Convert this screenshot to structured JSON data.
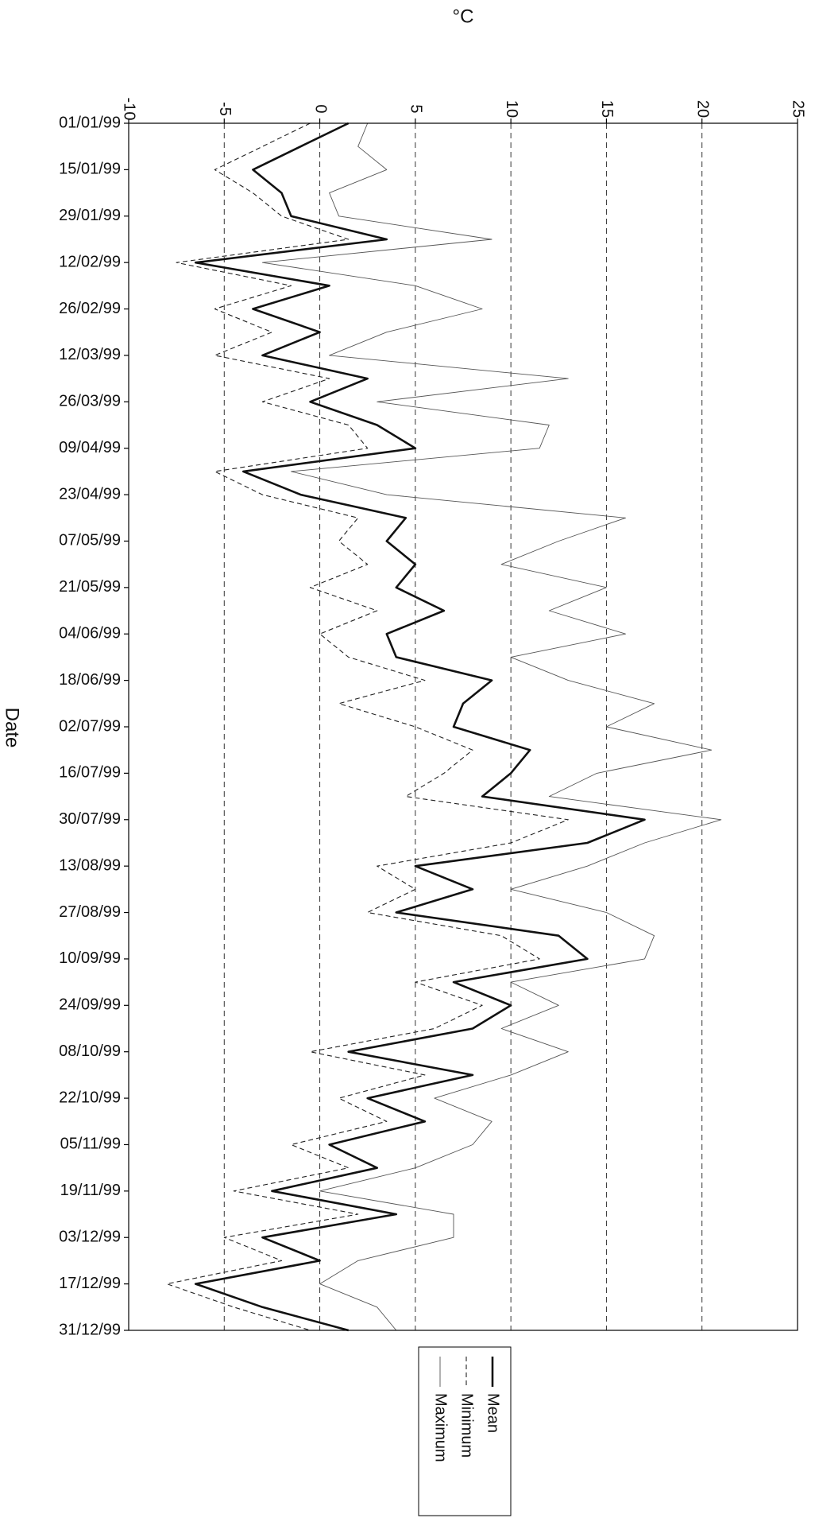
{
  "chart_data": {
    "type": "line",
    "orientation": "rotated-90-clockwise",
    "xlabel": "Date",
    "ylabel": "°C",
    "ylim": [
      -10,
      25
    ],
    "y_ticks": [
      "-10",
      "-5",
      "0",
      "5",
      "10",
      "15",
      "20",
      "25"
    ],
    "x_range": [
      "01/01/99",
      "31/12/99"
    ],
    "x_tick_labels": [
      "01/01/99",
      "15/01/99",
      "29/01/99",
      "12/02/99",
      "26/02/99",
      "12/03/99",
      "26/03/99",
      "09/04/99",
      "23/04/99",
      "07/05/99",
      "21/05/99",
      "04/06/99",
      "18/06/99",
      "02/07/99",
      "16/07/99",
      "30/07/99",
      "13/08/99",
      "27/08/99",
      "10/09/99",
      "24/09/99",
      "08/10/99",
      "22/10/99",
      "05/11/99",
      "19/11/99",
      "03/12/99",
      "17/12/99",
      "31/12/99"
    ],
    "grid": "dashed vertical gridlines at each °C tick",
    "legend_position": "bottom",
    "series": [
      {
        "name": "Mean",
        "style": "thick solid",
        "color": "#111111",
        "x": [
          "01/01/99",
          "08/01/99",
          "15/01/99",
          "22/01/99",
          "29/01/99",
          "05/02/99",
          "12/02/99",
          "19/02/99",
          "26/02/99",
          "05/03/99",
          "12/03/99",
          "19/03/99",
          "26/03/99",
          "02/04/99",
          "09/04/99",
          "16/04/99",
          "23/04/99",
          "30/04/99",
          "07/05/99",
          "14/05/99",
          "21/05/99",
          "28/05/99",
          "04/06/99",
          "11/06/99",
          "18/06/99",
          "25/06/99",
          "02/07/99",
          "09/07/99",
          "16/07/99",
          "23/07/99",
          "30/07/99",
          "06/08/99",
          "13/08/99",
          "20/08/99",
          "27/08/99",
          "03/09/99",
          "10/09/99",
          "17/09/99",
          "24/09/99",
          "01/10/99",
          "08/10/99",
          "15/10/99",
          "22/10/99",
          "29/10/99",
          "05/11/99",
          "12/11/99",
          "19/11/99",
          "26/11/99",
          "03/12/99",
          "10/12/99",
          "17/12/99",
          "24/12/99",
          "31/12/99"
        ],
        "values": [
          1.5,
          -1.0,
          -3.5,
          -2.0,
          -1.5,
          3.5,
          -6.5,
          0.5,
          -3.5,
          0.0,
          -3.0,
          2.5,
          -0.5,
          3.0,
          5.0,
          -4.0,
          -1.0,
          4.5,
          3.5,
          5.0,
          4.0,
          6.5,
          3.5,
          4.0,
          9.0,
          7.5,
          7.0,
          11.0,
          10.0,
          8.5,
          17.0,
          14.0,
          5.0,
          8.0,
          4.0,
          12.5,
          14.0,
          7.0,
          10.0,
          8.0,
          1.5,
          8.0,
          2.5,
          5.5,
          0.5,
          3.0,
          -2.5,
          4.0,
          -3.0,
          0.0,
          -6.5,
          -3.0,
          1.5
        ]
      },
      {
        "name": "Minimum",
        "style": "dashed",
        "color": "#222222",
        "x": [
          "01/01/99",
          "08/01/99",
          "15/01/99",
          "22/01/99",
          "29/01/99",
          "05/02/99",
          "12/02/99",
          "19/02/99",
          "26/02/99",
          "05/03/99",
          "12/03/99",
          "19/03/99",
          "26/03/99",
          "02/04/99",
          "09/04/99",
          "16/04/99",
          "23/04/99",
          "30/04/99",
          "07/05/99",
          "14/05/99",
          "21/05/99",
          "28/05/99",
          "04/06/99",
          "11/06/99",
          "18/06/99",
          "25/06/99",
          "02/07/99",
          "09/07/99",
          "16/07/99",
          "23/07/99",
          "30/07/99",
          "06/08/99",
          "13/08/99",
          "20/08/99",
          "27/08/99",
          "03/09/99",
          "10/09/99",
          "17/09/99",
          "24/09/99",
          "01/10/99",
          "08/10/99",
          "15/10/99",
          "22/10/99",
          "29/10/99",
          "05/11/99",
          "12/11/99",
          "19/11/99",
          "26/11/99",
          "03/12/99",
          "10/12/99",
          "17/12/99",
          "24/12/99",
          "31/12/99"
        ],
        "values": [
          -0.5,
          -3.0,
          -5.5,
          -3.5,
          -2.0,
          1.5,
          -7.5,
          -1.5,
          -5.5,
          -2.5,
          -5.5,
          0.5,
          -3.0,
          1.5,
          2.5,
          -5.5,
          -3.0,
          2.0,
          1.0,
          2.5,
          -0.5,
          3.0,
          0.0,
          1.5,
          5.5,
          1.0,
          5.0,
          8.0,
          6.5,
          4.5,
          13.0,
          10.0,
          3.0,
          5.0,
          2.5,
          9.5,
          11.5,
          5.0,
          8.5,
          6.0,
          -0.5,
          5.5,
          1.0,
          3.5,
          -1.5,
          1.5,
          -4.5,
          2.0,
          -5.0,
          -2.0,
          -8.0,
          -4.5,
          -0.5
        ]
      },
      {
        "name": "Maximum",
        "style": "thin solid",
        "color": "#555555",
        "x": [
          "01/01/99",
          "08/01/99",
          "15/01/99",
          "22/01/99",
          "29/01/99",
          "05/02/99",
          "12/02/99",
          "19/02/99",
          "26/02/99",
          "05/03/99",
          "12/03/99",
          "19/03/99",
          "26/03/99",
          "02/04/99",
          "09/04/99",
          "16/04/99",
          "23/04/99",
          "30/04/99",
          "07/05/99",
          "14/05/99",
          "21/05/99",
          "28/05/99",
          "04/06/99",
          "11/06/99",
          "18/06/99",
          "25/06/99",
          "02/07/99",
          "09/07/99",
          "16/07/99",
          "23/07/99",
          "30/07/99",
          "06/08/99",
          "13/08/99",
          "20/08/99",
          "27/08/99",
          "03/09/99",
          "10/09/99",
          "17/09/99",
          "24/09/99",
          "01/10/99",
          "08/10/99",
          "15/10/99",
          "22/10/99",
          "29/10/99",
          "05/11/99",
          "12/11/99",
          "19/11/99",
          "26/11/99",
          "03/12/99",
          "10/12/99",
          "17/12/99",
          "24/12/99",
          "31/12/99"
        ],
        "values": [
          2.5,
          2.0,
          3.5,
          0.5,
          1.0,
          9.0,
          -3.0,
          5.0,
          8.5,
          3.5,
          0.5,
          13.0,
          3.0,
          12.0,
          11.5,
          -1.5,
          3.5,
          16.0,
          12.5,
          9.5,
          15.0,
          12.0,
          16.0,
          10.0,
          13.0,
          17.5,
          15.0,
          20.5,
          14.5,
          12.0,
          21.0,
          17.0,
          14.0,
          10.0,
          15.0,
          17.5,
          17.0,
          10.0,
          12.5,
          9.5,
          13.0,
          10.0,
          6.0,
          9.0,
          8.0,
          5.0,
          0.0,
          7.0,
          7.0,
          2.0,
          0.0,
          3.0,
          4.0
        ]
      }
    ]
  }
}
